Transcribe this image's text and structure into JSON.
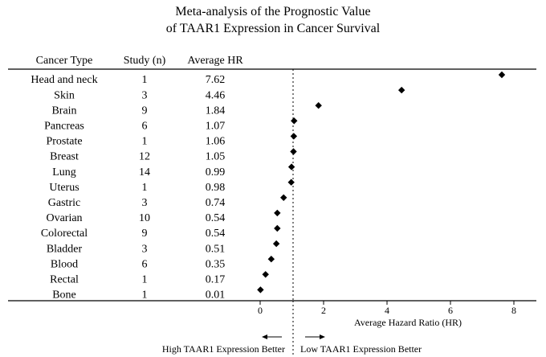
{
  "chart_data": {
    "type": "scatter",
    "title_line1": "Meta-analysis of the Prognostic Value",
    "title_line2": "of TAAR1 Expression in Cancer Survival",
    "columns": {
      "type": "Cancer Type",
      "study": "Study (n)",
      "hr": "Average HR"
    },
    "rows": [
      {
        "type": "Head and neck",
        "study": "1",
        "hr": "7.62",
        "value": 7.62
      },
      {
        "type": "Skin",
        "study": "3",
        "hr": "4.46",
        "value": 4.46
      },
      {
        "type": "Brain",
        "study": "9",
        "hr": "1.84",
        "value": 1.84
      },
      {
        "type": "Pancreas",
        "study": "6",
        "hr": "1.07",
        "value": 1.07
      },
      {
        "type": "Prostate",
        "study": "1",
        "hr": "1.06",
        "value": 1.06
      },
      {
        "type": "Breast",
        "study": "12",
        "hr": "1.05",
        "value": 1.05
      },
      {
        "type": "Lung",
        "study": "14",
        "hr": "0.99",
        "value": 0.99
      },
      {
        "type": "Uterus",
        "study": "1",
        "hr": "0.98",
        "value": 0.98
      },
      {
        "type": "Gastric",
        "study": "3",
        "hr": "0.74",
        "value": 0.74
      },
      {
        "type": "Ovarian",
        "study": "10",
        "hr": "0.54",
        "value": 0.54
      },
      {
        "type": "Colorectal",
        "study": "9",
        "hr": "0.54",
        "value": 0.54
      },
      {
        "type": "Bladder",
        "study": "3",
        "hr": "0.51",
        "value": 0.51
      },
      {
        "type": "Blood",
        "study": "6",
        "hr": "0.35",
        "value": 0.35
      },
      {
        "type": "Rectal",
        "study": "1",
        "hr": "0.17",
        "value": 0.17
      },
      {
        "type": "Bone",
        "study": "1",
        "hr": "0.01",
        "value": 0.01
      }
    ],
    "xlim": [
      0,
      8
    ],
    "xticks": [
      "0",
      "2",
      "4",
      "6",
      "8"
    ],
    "xlabel": "Average Hazard Ratio (HR)",
    "reference_line": 1,
    "annotation_left": "High TAAR1 Expression Better",
    "annotation_right": "Low TAAR1 Expression Better"
  }
}
